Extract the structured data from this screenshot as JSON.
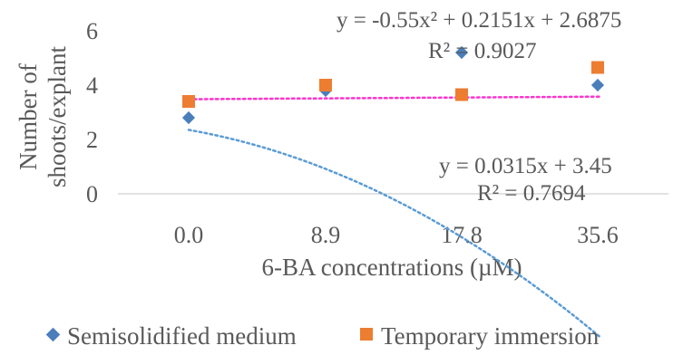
{
  "chart_data": {
    "type": "scatter",
    "xlabel": "6-BA concentrations (µM)",
    "ylabel_lines": [
      "Number of",
      "shoots/explant"
    ],
    "categories": [
      "0.0",
      "8.9",
      "17.8",
      "35.6"
    ],
    "ylim": [
      0,
      6
    ],
    "yticks": [
      "0",
      "2",
      "4",
      "6"
    ],
    "grid": false,
    "legend_position": "bottom",
    "series": [
      {
        "name": "Semisolidified medium",
        "marker": "diamond",
        "color": "#4a7ebb",
        "trend_color": "#5b9bd5",
        "values": [
          2.8,
          3.8,
          5.2,
          4.0
        ],
        "trendline": {
          "type": "polynomial",
          "coef": [
            -0.55,
            0.2151,
            2.6875
          ],
          "equation": "y = -0.55x² + 0.2151x + 2.6875",
          "r2": "R² = 0.9027"
        }
      },
      {
        "name": "Temporary immersion",
        "marker": "square",
        "color": "#ed7d31",
        "trend_color": "#ff33cc",
        "values": [
          3.4,
          4.0,
          3.65,
          4.65
        ],
        "trendline": {
          "type": "linear",
          "coef": [
            0.0315,
            3.45
          ],
          "equation": "y = 0.0315x + 3.45",
          "r2": "R² = 0.7694"
        }
      }
    ]
  }
}
